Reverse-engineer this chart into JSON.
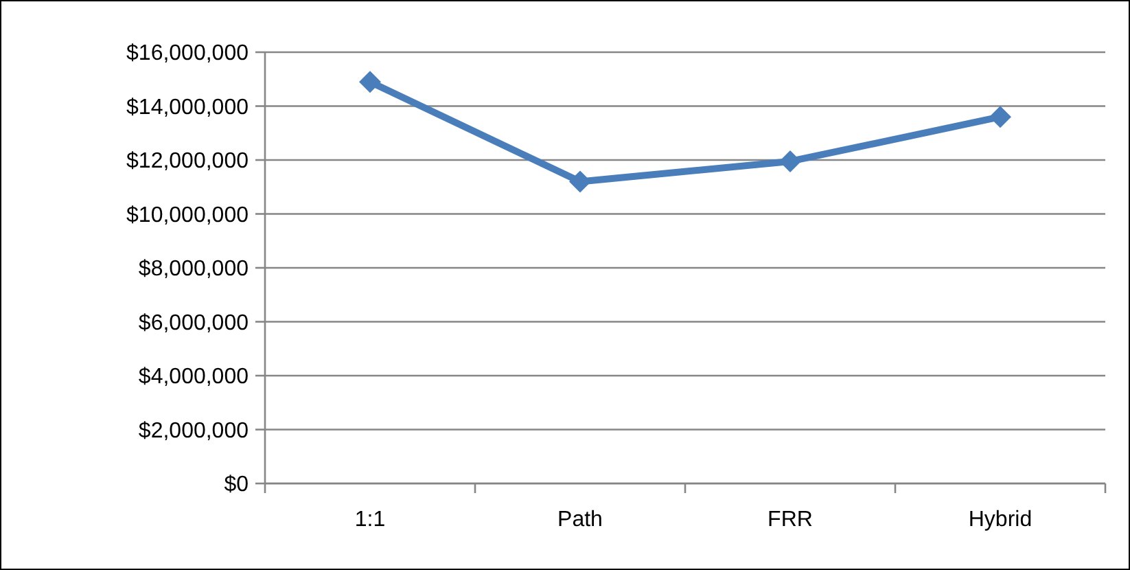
{
  "chart_data": {
    "type": "line",
    "categories": [
      "1:1",
      "Path",
      "FRR",
      "Hybrid"
    ],
    "series": [
      {
        "color": "#4a7ebb",
        "values": [
          14900000,
          11200000,
          11950000,
          13600000
        ]
      }
    ],
    "ylim": [
      0,
      16000000
    ],
    "yticks": [
      {
        "value": 0,
        "label": "$0"
      },
      {
        "value": 2000000,
        "label": "$2,000,000"
      },
      {
        "value": 4000000,
        "label": "$4,000,000"
      },
      {
        "value": 6000000,
        "label": "$6,000,000"
      },
      {
        "value": 8000000,
        "label": "$8,000,000"
      },
      {
        "value": 10000000,
        "label": "$10,000,000"
      },
      {
        "value": 12000000,
        "label": "$12,000,000"
      },
      {
        "value": 14000000,
        "label": "$14,000,000"
      },
      {
        "value": 16000000,
        "label": "$16,000,000"
      }
    ],
    "grid": "y",
    "marker": "diamond",
    "line_style": "solid"
  }
}
